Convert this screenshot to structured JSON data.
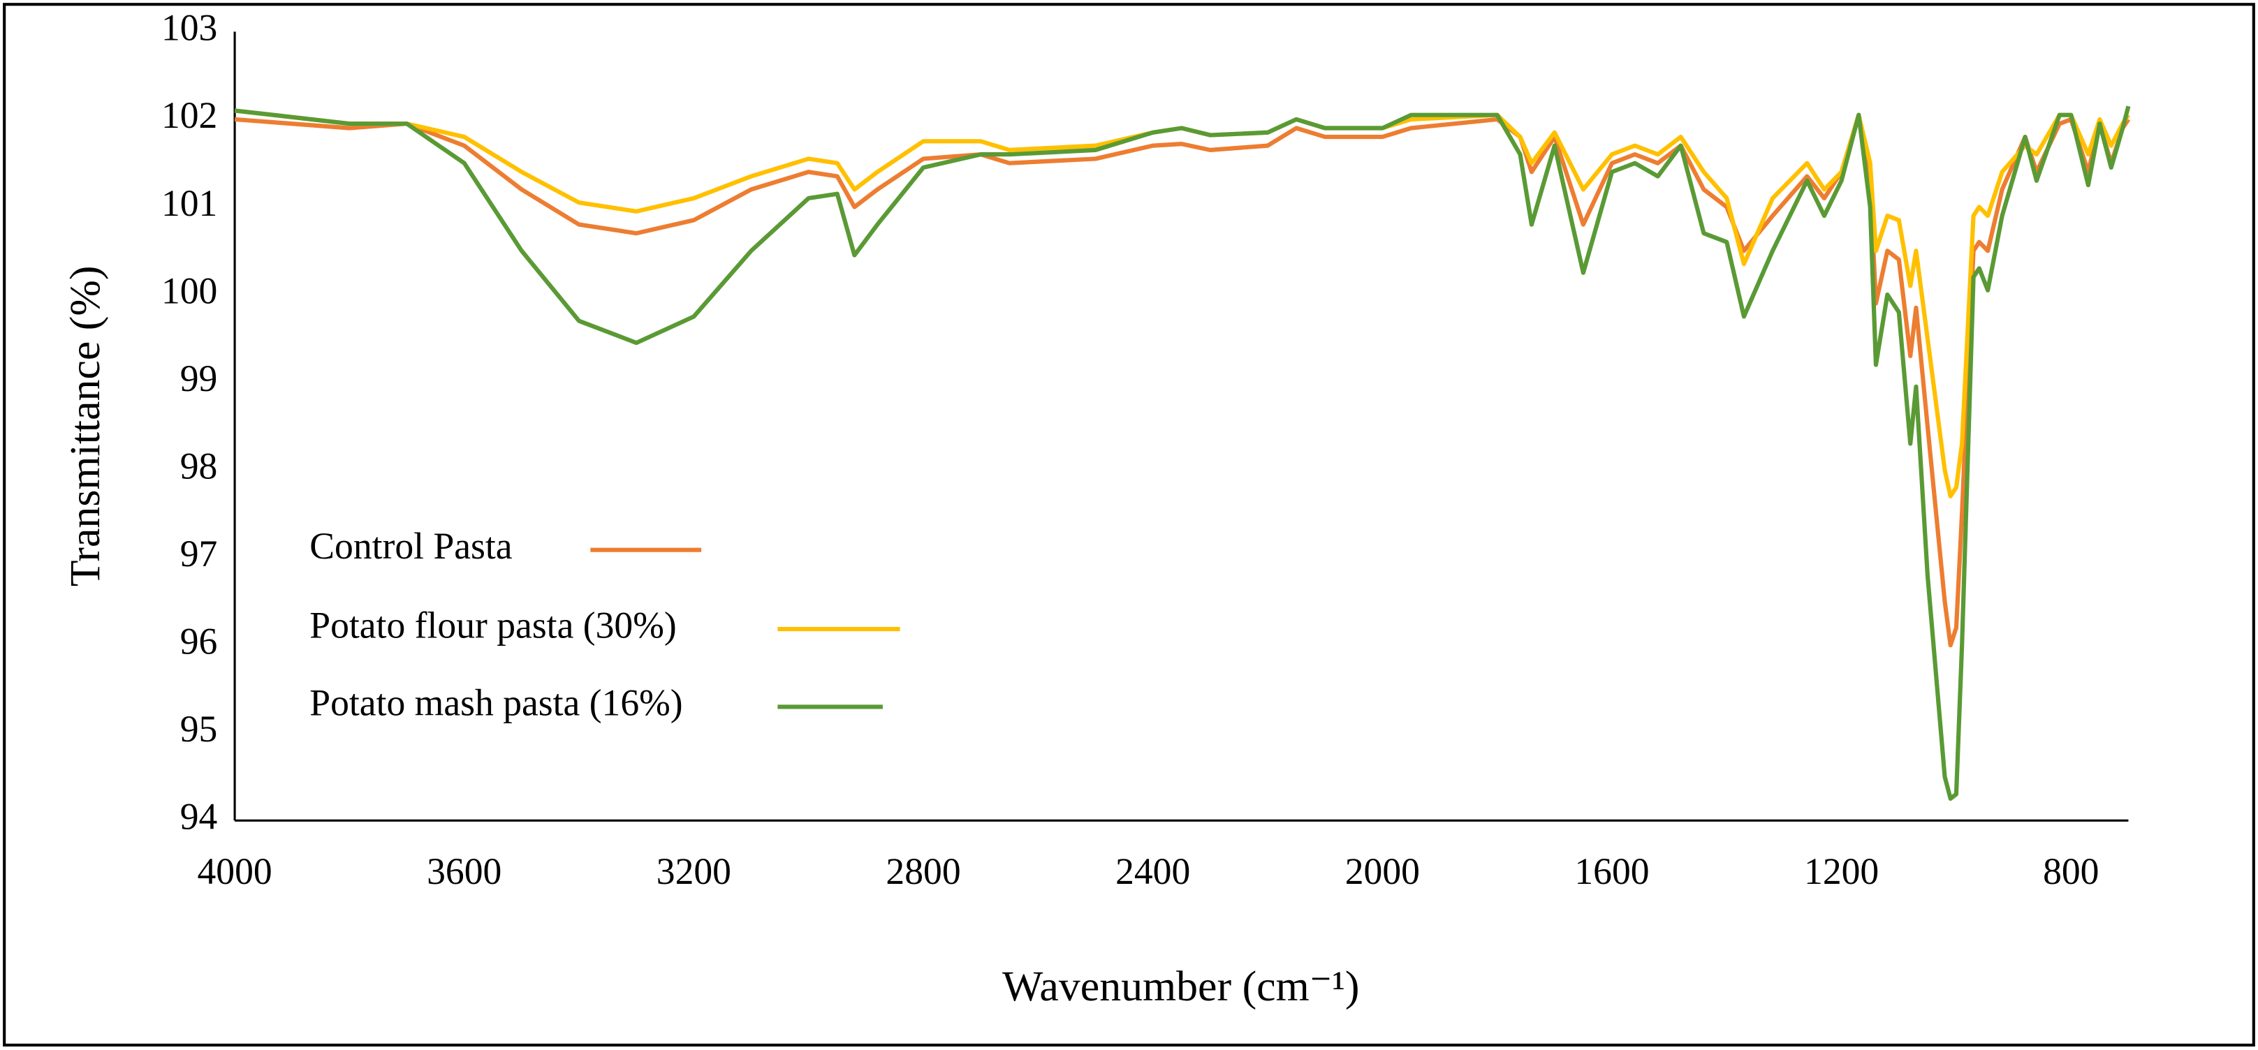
{
  "chart_data": {
    "type": "line",
    "x_label": "Wavenumber (cm⁻¹)",
    "y_label": "Transmittance (%)",
    "xlim": [
      4000,
      700
    ],
    "xticks": [
      4000,
      3600,
      3200,
      2800,
      2400,
      2000,
      1600,
      1200,
      800
    ],
    "ylim": [
      94,
      103
    ],
    "yticks": [
      94,
      95,
      96,
      97,
      98,
      99,
      100,
      101,
      102,
      103
    ],
    "grid": false,
    "legend": "left",
    "x": [
      4000,
      3800,
      3700,
      3600,
      3500,
      3400,
      3300,
      3200,
      3100,
      3000,
      2950,
      2920,
      2880,
      2800,
      2700,
      2650,
      2500,
      2400,
      2350,
      2300,
      2200,
      2150,
      2100,
      2000,
      1950,
      1800,
      1760,
      1740,
      1700,
      1650,
      1600,
      1560,
      1520,
      1480,
      1440,
      1400,
      1370,
      1320,
      1260,
      1230,
      1200,
      1170,
      1150,
      1140,
      1120,
      1100,
      1080,
      1070,
      1050,
      1020,
      1010,
      1000,
      990,
      970,
      960,
      945,
      920,
      880,
      860,
      820,
      800,
      770,
      750,
      730,
      710,
      700
    ],
    "series": [
      {
        "name": "Control Pasta",
        "color": "#ED7D31",
        "values": [
          102.0,
          101.9,
          101.95,
          101.7,
          101.2,
          100.8,
          100.7,
          100.85,
          101.2,
          101.4,
          101.35,
          101.0,
          101.2,
          101.55,
          101.6,
          101.5,
          101.55,
          101.7,
          101.72,
          101.65,
          101.7,
          101.9,
          101.8,
          101.8,
          101.9,
          102.0,
          101.8,
          101.4,
          101.8,
          100.8,
          101.5,
          101.6,
          101.5,
          101.7,
          101.2,
          101.0,
          100.5,
          100.9,
          101.35,
          101.1,
          101.4,
          102.05,
          101.3,
          99.9,
          100.5,
          100.4,
          99.3,
          99.85,
          98.5,
          96.5,
          96.0,
          96.2,
          97.5,
          100.5,
          100.6,
          100.5,
          101.2,
          101.8,
          101.4,
          101.95,
          102.0,
          101.4,
          101.95,
          101.5,
          101.9,
          102.0
        ]
      },
      {
        "name": "Potato flour pasta (30%)",
        "color": "#FFC000",
        "values": [
          102.1,
          101.95,
          101.95,
          101.8,
          101.4,
          101.05,
          100.95,
          101.1,
          101.35,
          101.55,
          101.5,
          101.2,
          101.4,
          101.75,
          101.75,
          101.65,
          101.7,
          101.85,
          101.9,
          101.82,
          101.85,
          102.0,
          101.9,
          101.9,
          102.0,
          102.05,
          101.8,
          101.5,
          101.85,
          101.2,
          101.6,
          101.7,
          101.6,
          101.8,
          101.4,
          101.1,
          100.35,
          101.1,
          101.5,
          101.2,
          101.4,
          102.05,
          101.5,
          100.5,
          100.9,
          100.85,
          100.1,
          100.5,
          99.5,
          98.0,
          97.7,
          97.8,
          98.3,
          100.9,
          101.0,
          100.9,
          101.4,
          101.7,
          101.6,
          102.05,
          102.05,
          101.6,
          102.0,
          101.7,
          101.95,
          102.05
        ]
      },
      {
        "name": "Potato mash pasta (16%)",
        "color": "#5A9A35",
        "values": [
          102.1,
          101.95,
          101.95,
          101.5,
          100.5,
          99.7,
          99.45,
          99.75,
          100.5,
          101.1,
          101.15,
          100.45,
          100.8,
          101.45,
          101.6,
          101.6,
          101.65,
          101.85,
          101.9,
          101.82,
          101.85,
          102.0,
          101.9,
          101.9,
          102.05,
          102.05,
          101.6,
          100.8,
          101.7,
          100.25,
          101.4,
          101.5,
          101.35,
          101.7,
          100.7,
          100.6,
          99.75,
          100.5,
          101.3,
          100.9,
          101.3,
          102.05,
          101.0,
          99.2,
          100.0,
          99.8,
          98.3,
          98.95,
          96.8,
          94.5,
          94.25,
          94.3,
          96.0,
          100.2,
          100.3,
          100.05,
          100.9,
          101.8,
          101.3,
          102.05,
          102.05,
          101.25,
          101.95,
          101.45,
          101.9,
          102.15
        ]
      }
    ]
  }
}
